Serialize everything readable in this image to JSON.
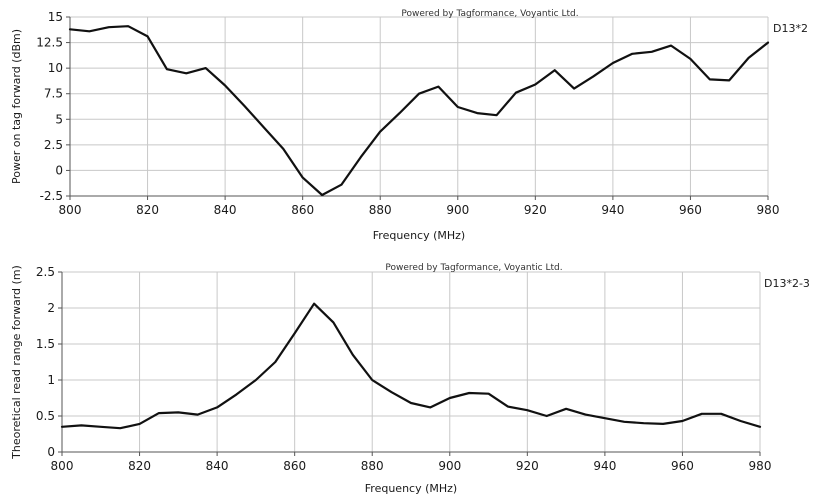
{
  "chart_data": [
    {
      "type": "line",
      "credit": "Powered by Tagformance, Voyantic Ltd.",
      "xlabel": "Frequency (MHz)",
      "ylabel": "Power on tag forward (dBm)",
      "xlim": [
        800,
        980
      ],
      "ylim": [
        -2.5,
        15
      ],
      "xticks": [
        "800",
        "820",
        "840",
        "860",
        "880",
        "900",
        "920",
        "940",
        "960",
        "980"
      ],
      "yticks": [
        "-2.5",
        "0",
        "2.5",
        "5",
        "7.5",
        "10",
        "12.5",
        "15"
      ],
      "grid": true,
      "series": [
        {
          "name": "D13*2",
          "x": [
            800,
            805,
            810,
            815,
            820,
            825,
            830,
            835,
            840,
            845,
            850,
            855,
            860,
            865,
            870,
            875,
            880,
            885,
            890,
            895,
            900,
            905,
            910,
            915,
            920,
            925,
            930,
            935,
            940,
            945,
            950,
            955,
            960,
            965,
            970,
            975,
            980
          ],
          "y": [
            13.8,
            13.6,
            14.0,
            14.1,
            13.1,
            9.9,
            9.5,
            10.0,
            8.3,
            6.3,
            4.2,
            2.1,
            -0.7,
            -2.4,
            -1.4,
            1.3,
            3.8,
            5.6,
            7.5,
            8.2,
            6.2,
            5.6,
            5.4,
            7.6,
            8.4,
            9.8,
            8.0,
            9.2,
            10.5,
            11.4,
            11.6,
            12.2,
            10.9,
            8.9,
            8.8,
            11.0,
            12.5
          ]
        }
      ]
    },
    {
      "type": "line",
      "credit": "Powered by Tagformance, Voyantic Ltd.",
      "xlabel": "Frequency (MHz)",
      "ylabel": "Theoretical read range forward (m)",
      "xlim": [
        800,
        980
      ],
      "ylim": [
        0,
        2.5
      ],
      "xticks": [
        "800",
        "820",
        "840",
        "860",
        "880",
        "900",
        "920",
        "940",
        "960",
        "980"
      ],
      "yticks": [
        "0",
        "0.5",
        "1",
        "1.5",
        "2",
        "2.5"
      ],
      "grid": true,
      "series": [
        {
          "name": "D13*2-3",
          "x": [
            800,
            805,
            810,
            815,
            820,
            825,
            830,
            835,
            840,
            845,
            850,
            855,
            860,
            865,
            870,
            875,
            880,
            885,
            890,
            895,
            900,
            905,
            910,
            915,
            920,
            925,
            930,
            935,
            940,
            945,
            950,
            955,
            960,
            965,
            970,
            975,
            980
          ],
          "y": [
            0.35,
            0.37,
            0.35,
            0.33,
            0.39,
            0.54,
            0.55,
            0.52,
            0.62,
            0.8,
            1.0,
            1.25,
            1.65,
            2.06,
            1.8,
            1.35,
            1.0,
            0.83,
            0.68,
            0.62,
            0.75,
            0.82,
            0.81,
            0.63,
            0.58,
            0.5,
            0.6,
            0.52,
            0.47,
            0.42,
            0.4,
            0.39,
            0.43,
            0.53,
            0.53,
            0.43,
            0.35
          ]
        }
      ]
    }
  ]
}
